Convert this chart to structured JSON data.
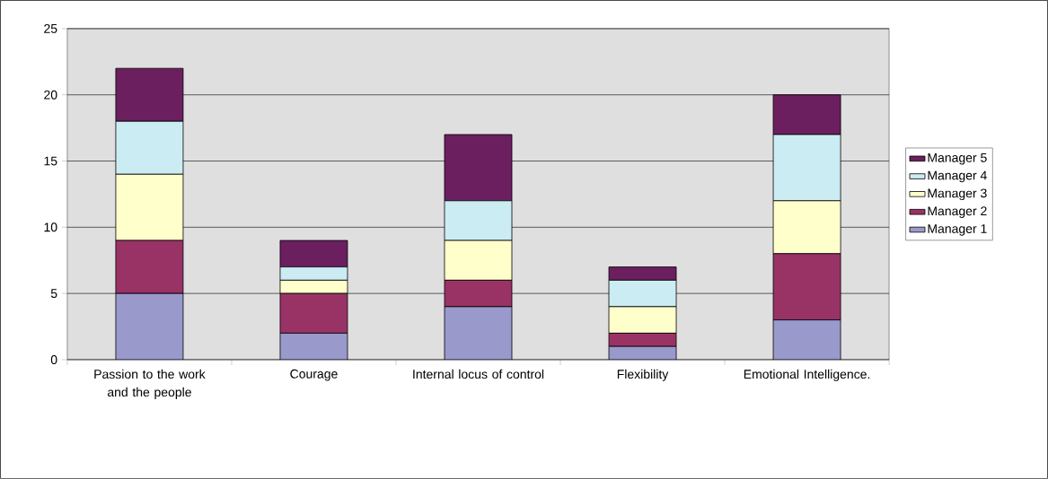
{
  "chart_data": {
    "type": "bar",
    "stacked": true,
    "categories": [
      "Passion to the work and the people",
      "Courage",
      "Internal locus of control",
      "Flexibility",
      "Emotional Intelligence."
    ],
    "series": [
      {
        "name": "Manager 1",
        "color": "#9999cc",
        "values": [
          5,
          2,
          4,
          1,
          3
        ]
      },
      {
        "name": "Manager 2",
        "color": "#993366",
        "values": [
          4,
          3,
          2,
          1,
          5
        ]
      },
      {
        "name": "Manager 3",
        "color": "#ffffcc",
        "values": [
          5,
          1,
          3,
          2,
          4
        ]
      },
      {
        "name": "Manager 4",
        "color": "#ccecf4",
        "values": [
          4,
          1,
          3,
          2,
          5
        ]
      },
      {
        "name": "Manager 5",
        "color": "#6b1f5f",
        "values": [
          4,
          2,
          5,
          1,
          3
        ]
      }
    ],
    "ylim": [
      0,
      25
    ],
    "yticks": [
      0,
      5,
      10,
      15,
      20,
      25
    ],
    "grid": "y",
    "legend": "right"
  }
}
